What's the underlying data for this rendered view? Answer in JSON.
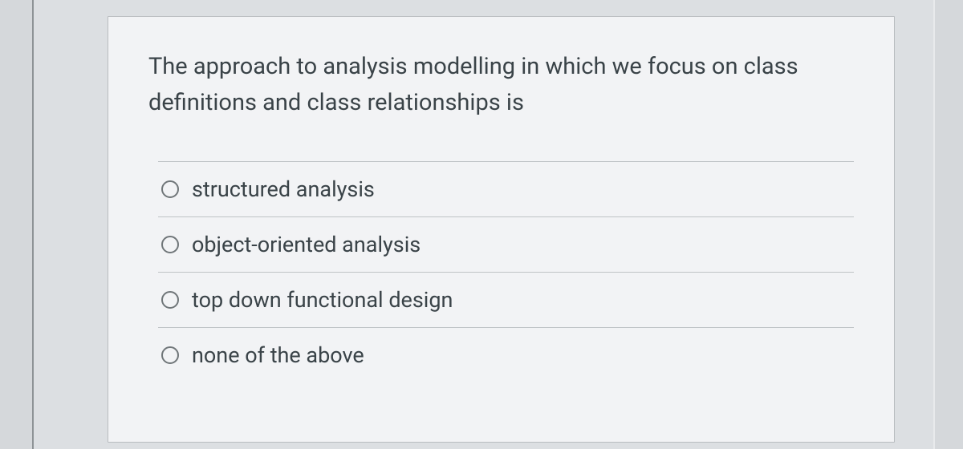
{
  "question": {
    "prompt": "The approach to analysis modelling in which we focus on class definitions and class relationships is",
    "options": [
      {
        "label": "structured analysis"
      },
      {
        "label": "object-oriented analysis"
      },
      {
        "label": "top down functional design"
      },
      {
        "label": "none of the above"
      }
    ]
  },
  "styles": {
    "page_background": "#d5d8db",
    "card_background": "#f2f3f5",
    "card_border": "#b8bcbf",
    "divider_color": "#bfc3c6",
    "text_color": "#3a4348",
    "radio_border": "#707679",
    "question_fontsize": 29,
    "option_fontsize": 27
  }
}
